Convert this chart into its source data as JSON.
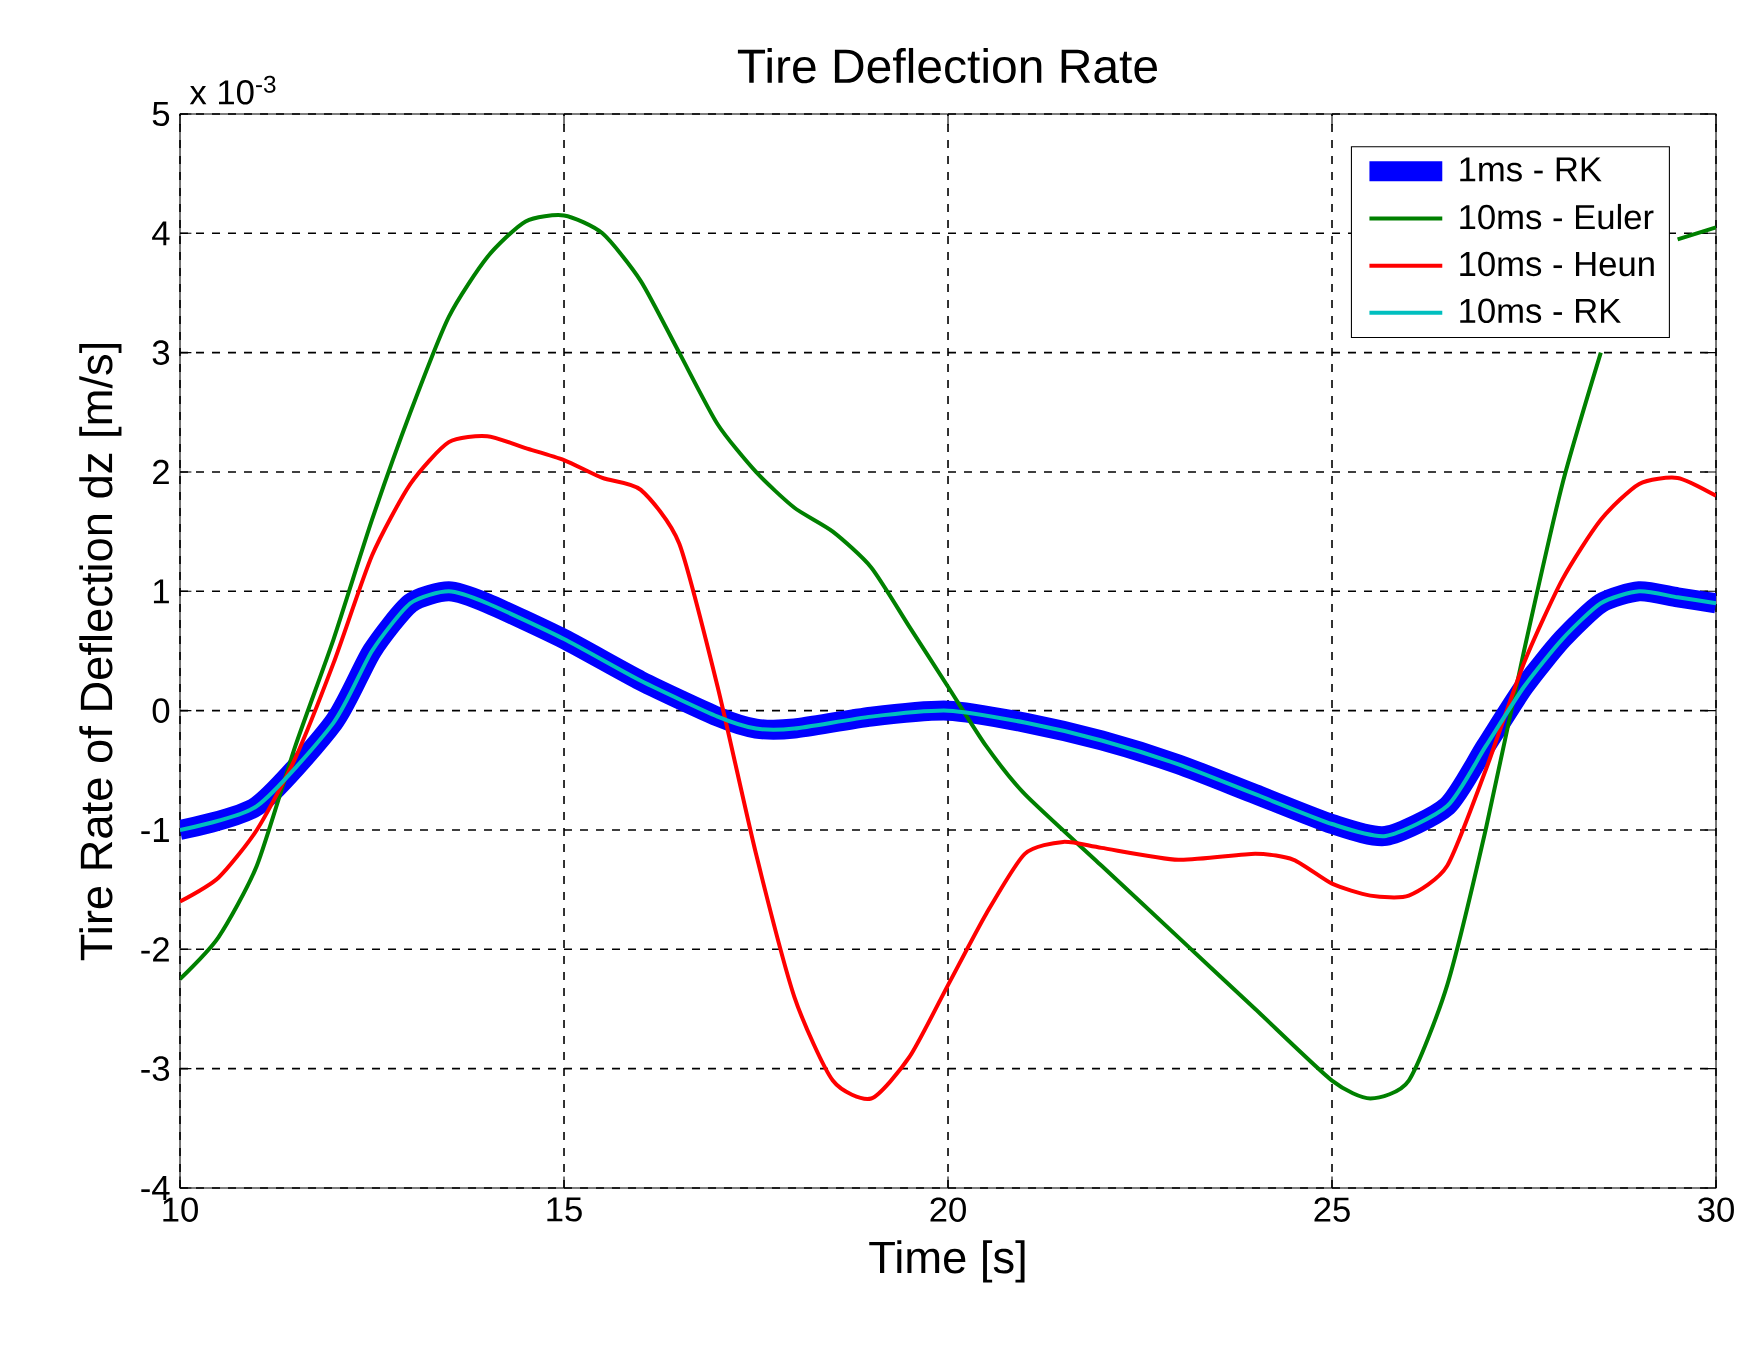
{
  "chart_data": {
    "type": "line",
    "title": "Tire Deflection Rate",
    "xlabel": "Time [s]",
    "ylabel": "Tire Rate of Deflection dz [m/s]",
    "annotations": [
      "x 10$^{-3}$"
    ],
    "xlim": [
      10,
      30
    ],
    "xticks": [
      10,
      15,
      20,
      25,
      30
    ],
    "ylim": [
      -4,
      5
    ],
    "yticks": [
      -4,
      -3,
      -2,
      -1,
      0,
      1,
      2,
      3,
      4,
      5
    ],
    "grid": true,
    "legend": "top right",
    "marker": "none",
    "line_style": "solid",
    "series": [
      {
        "name": "1ms - RK",
        "color": "#0000ff",
        "x": [
          10,
          11,
          12,
          12.5,
          13,
          13.5,
          14,
          15,
          16,
          17,
          17.5,
          18,
          19,
          20,
          21,
          22,
          23,
          24,
          25,
          25.7,
          26.5,
          27,
          27.5,
          28,
          28.5,
          29,
          29.5,
          30
        ],
        "values": [
          -1.0,
          -0.8,
          -0.1,
          0.5,
          0.9,
          1.0,
          0.9,
          0.6,
          0.25,
          -0.05,
          -0.15,
          -0.15,
          -0.05,
          0.0,
          -0.1,
          -0.25,
          -0.45,
          -0.7,
          -0.95,
          -1.05,
          -0.8,
          -0.3,
          0.2,
          0.6,
          0.9,
          1.0,
          0.95,
          0.9
        ]
      },
      {
        "name": "10ms - Euler",
        "color": "#008000",
        "x": [
          10,
          10.5,
          11,
          11.5,
          12,
          12.5,
          13,
          13.5,
          14,
          14.5,
          15,
          15.5,
          16,
          16.5,
          17,
          17.5,
          18,
          18.5,
          19,
          19.5,
          20,
          20.5,
          21,
          22,
          23,
          24,
          25,
          25.5,
          26,
          26.5,
          27,
          27.5,
          28,
          28.5,
          29,
          29.5,
          30
        ],
        "values": [
          -2.25,
          -1.9,
          -1.3,
          -0.3,
          0.6,
          1.6,
          2.5,
          3.3,
          3.8,
          4.1,
          4.15,
          4.0,
          3.6,
          3.0,
          2.4,
          2.0,
          1.7,
          1.5,
          1.2,
          0.7,
          0.2,
          -0.3,
          -0.7,
          -1.3,
          -1.9,
          -2.5,
          -3.1,
          -3.25,
          -3.1,
          -2.3,
          -1.0,
          0.5,
          1.9,
          3.0,
          null,
          3.95,
          4.05
        ]
      },
      {
        "name": "10ms - Heun",
        "color": "#ff0000",
        "x": [
          10,
          10.5,
          11,
          11.5,
          12,
          12.5,
          13,
          13.5,
          14,
          14.5,
          15,
          15.5,
          16,
          16.5,
          17,
          17.5,
          18,
          18.5,
          19,
          19.5,
          20,
          20.5,
          21,
          21.5,
          22,
          23,
          24,
          24.5,
          25,
          25.5,
          26,
          26.5,
          27,
          27.5,
          28,
          28.5,
          29,
          29.5,
          30
        ],
        "values": [
          -1.6,
          -1.4,
          -1.0,
          -0.4,
          0.4,
          1.3,
          1.9,
          2.25,
          2.3,
          2.2,
          2.1,
          1.95,
          1.85,
          1.4,
          0.2,
          -1.2,
          -2.4,
          -3.1,
          -3.25,
          -2.9,
          -2.3,
          -1.7,
          -1.2,
          -1.1,
          -1.15,
          -1.25,
          -1.2,
          -1.25,
          -1.45,
          -1.55,
          -1.55,
          -1.3,
          -0.5,
          0.4,
          1.1,
          1.6,
          1.9,
          1.95,
          1.8
        ]
      },
      {
        "name": "10ms - RK",
        "color": "#00bfbf",
        "x": [
          10,
          11,
          12,
          12.5,
          13,
          13.5,
          14,
          15,
          16,
          17,
          17.5,
          18,
          19,
          20,
          21,
          22,
          23,
          24,
          25,
          25.7,
          26.5,
          27,
          27.5,
          28,
          28.5,
          29,
          29.5,
          30
        ],
        "values": [
          -1.0,
          -0.8,
          -0.1,
          0.5,
          0.9,
          1.0,
          0.9,
          0.6,
          0.25,
          -0.05,
          -0.15,
          -0.15,
          -0.05,
          0.0,
          -0.1,
          -0.25,
          -0.45,
          -0.7,
          -0.95,
          -1.05,
          -0.8,
          -0.3,
          0.2,
          0.6,
          0.9,
          1.0,
          0.95,
          0.9
        ]
      }
    ]
  }
}
